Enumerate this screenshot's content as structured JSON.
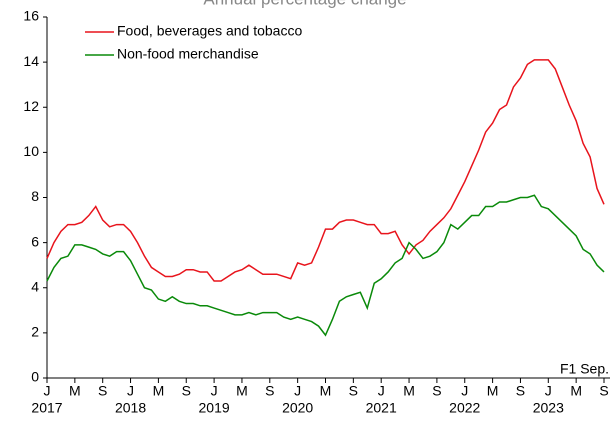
{
  "chart_data": {
    "type": "line",
    "title": "Annual percentage change",
    "annotation": "F1 Sep.",
    "categories": [
      "J",
      null,
      null,
      null,
      "M",
      null,
      null,
      null,
      "S",
      null,
      null,
      null,
      "J",
      null,
      null,
      null,
      "M",
      null,
      null,
      null,
      "S",
      null,
      null,
      null,
      "J",
      null,
      null,
      null,
      "M",
      null,
      null,
      null,
      "S",
      null,
      null,
      null,
      "J",
      null,
      null,
      null,
      "M",
      null,
      null,
      null,
      "S",
      null,
      null,
      null,
      "J",
      null,
      null,
      null,
      "M",
      null,
      null,
      null,
      "S",
      null,
      null,
      null,
      "J",
      null,
      null,
      null,
      "M",
      null,
      null,
      null,
      "S",
      null,
      null,
      null,
      "J",
      null,
      null,
      null,
      "M",
      null,
      null,
      null,
      "S"
    ],
    "year_labels": [
      "2017",
      "2018",
      "2019",
      "2020",
      "2021",
      "2022",
      "2023"
    ],
    "series": [
      {
        "name": "Food, beverages and tobacco",
        "color": "#e8141c",
        "values": [
          5.3,
          6.0,
          6.5,
          6.8,
          6.8,
          6.9,
          7.2,
          7.6,
          7.0,
          6.7,
          6.8,
          6.8,
          6.5,
          6.0,
          5.4,
          4.9,
          4.7,
          4.5,
          4.5,
          4.6,
          4.8,
          4.8,
          4.7,
          4.7,
          4.3,
          4.3,
          4.5,
          4.7,
          4.8,
          5.0,
          4.8,
          4.6,
          4.6,
          4.6,
          4.5,
          4.4,
          5.1,
          5.0,
          5.1,
          5.8,
          6.6,
          6.6,
          6.9,
          7.0,
          7.0,
          6.9,
          6.8,
          6.8,
          6.4,
          6.4,
          6.5,
          5.9,
          5.5,
          5.9,
          6.1,
          6.5,
          6.8,
          7.1,
          7.5,
          8.1,
          8.7,
          9.4,
          10.1,
          10.9,
          11.3,
          11.9,
          12.1,
          12.9,
          13.3,
          13.9,
          14.1,
          14.1,
          14.1,
          13.7,
          12.9,
          12.1,
          11.4,
          10.4,
          9.8,
          8.4,
          7.7
        ]
      },
      {
        "name": "Non-food merchandise",
        "color": "#0a8a0a",
        "values": [
          4.3,
          4.9,
          5.3,
          5.4,
          5.9,
          5.9,
          5.8,
          5.7,
          5.5,
          5.4,
          5.6,
          5.6,
          5.2,
          4.6,
          4.0,
          3.9,
          3.5,
          3.4,
          3.6,
          3.4,
          3.3,
          3.3,
          3.2,
          3.2,
          3.1,
          3.0,
          2.9,
          2.8,
          2.8,
          2.9,
          2.8,
          2.9,
          2.9,
          2.9,
          2.7,
          2.6,
          2.7,
          2.6,
          2.5,
          2.3,
          1.9,
          2.6,
          3.4,
          3.6,
          3.7,
          3.8,
          3.1,
          4.2,
          4.4,
          4.7,
          5.1,
          5.3,
          6.0,
          5.7,
          5.3,
          5.4,
          5.6,
          6.0,
          6.8,
          6.6,
          6.9,
          7.2,
          7.2,
          7.6,
          7.6,
          7.8,
          7.8,
          7.9,
          8.0,
          8.0,
          8.1,
          7.6,
          7.5,
          7.2,
          6.9,
          6.6,
          6.3,
          5.7,
          5.5,
          5.0,
          4.7
        ]
      }
    ],
    "ylim": [
      0,
      16
    ],
    "yticks": [
      0,
      2,
      4,
      6,
      8,
      10,
      12,
      14,
      16
    ],
    "grid": false
  }
}
